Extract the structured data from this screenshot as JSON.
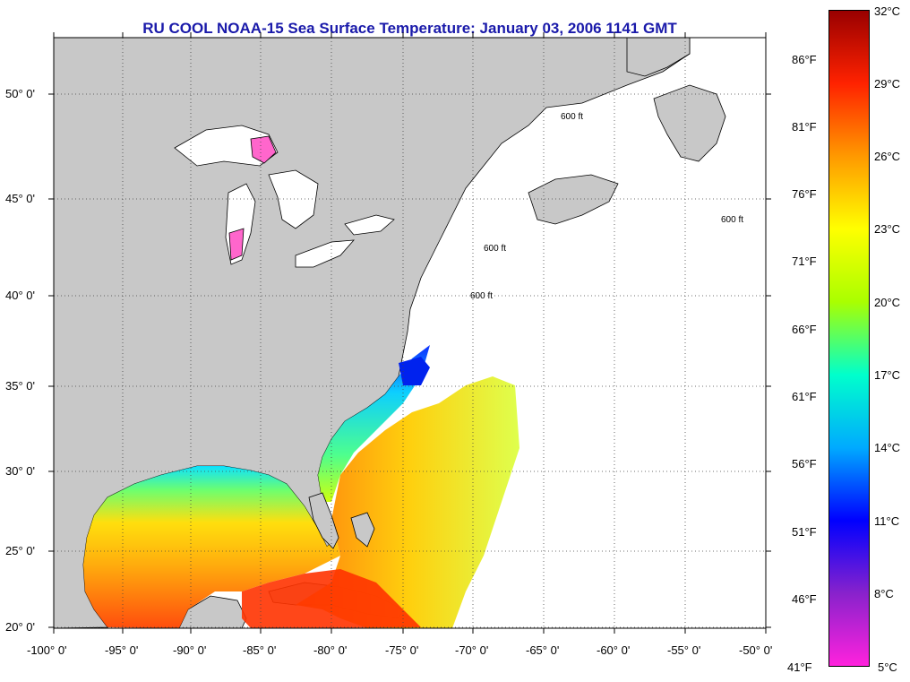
{
  "title": "RU COOL  NOAA-15  Sea Surface Temperature:  January 03, 2006 1141 GMT",
  "map": {
    "lon_range": [
      -100,
      -50
    ],
    "lat_range": [
      20,
      52.5
    ],
    "lat_labels": [
      "50° 0'",
      "45° 0'",
      "40° 0'",
      "35° 0'",
      "30° 0'",
      "25° 0'",
      "20° 0'"
    ],
    "lon_labels": [
      "-100° 0'",
      "-95° 0'",
      "-90° 0'",
      "-85° 0'",
      "-80° 0'",
      "-75° 0'",
      "-70° 0'",
      "-65° 0'",
      "-60° 0'",
      "-55° 0'",
      "-50° 0'"
    ],
    "contour_label": "600 ft",
    "colors": {
      "land": "#c8c8c8",
      "ocean_nodata": "#ffffff",
      "gridline": "#444444"
    }
  },
  "colorbar": {
    "celsius_labels": [
      "32°C",
      "29°C",
      "26°C",
      "23°C",
      "20°C",
      "17°C",
      "14°C",
      "11°C",
      "8°C",
      "5°C"
    ],
    "fahrenheit_labels": [
      "86°F",
      "81°F",
      "76°F",
      "71°F",
      "66°F",
      "61°F",
      "56°F",
      "51°F",
      "46°F",
      "41°F"
    ],
    "range_c": [
      5,
      32
    ],
    "colors": [
      "#ff22dd",
      "#8822cc",
      "#0000ff",
      "#00aaff",
      "#00ffcc",
      "#aaff00",
      "#ffff00",
      "#ff9900",
      "#ff2200",
      "#990000"
    ]
  }
}
